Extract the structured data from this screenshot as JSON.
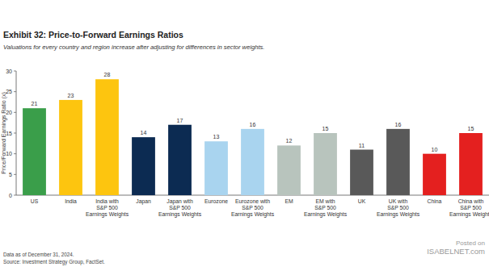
{
  "chart_data": {
    "type": "bar",
    "title": "Exhibit 32: Price-to-Forward Earnings Ratios",
    "subtitle": "Valuations for every country and region increase after adjusting for differences in sector weights.",
    "y_label": "Price/Forward Earnings Ratio (x)",
    "categories": [
      "US",
      "India",
      "India with S&P 500 Earnings Weights",
      "Japan",
      "Japan with S&P 500 Earnings Weights",
      "Eurozone",
      "Eurozone with S&P 500 Earnings Weights",
      "EM",
      "EM with S&P 500 Earnings Weights",
      "UK",
      "UK with S&P 500 Earnings Weights",
      "China",
      "China with S&P 500 Earnings Weights"
    ],
    "values": [
      21,
      23,
      28,
      14,
      17,
      13,
      16,
      12,
      15,
      11,
      16,
      10,
      15
    ],
    "colors": [
      "#3a9e4a",
      "#fdc50f",
      "#fdc50f",
      "#0c2b52",
      "#0c2b52",
      "#a9d4ef",
      "#a9d4ef",
      "#b8c4bd",
      "#b8c4bd",
      "#595959",
      "#595959",
      "#e4201f",
      "#e4201f"
    ],
    "ylim": [
      0,
      30
    ],
    "yticks": [
      0,
      5,
      10,
      15,
      20,
      25,
      30
    ],
    "grid": false,
    "data_labels": true,
    "footnotes": [
      "Data as of December 31, 2024.",
      "Source: Investment Strategy Group, FactSet."
    ],
    "watermark": [
      "Posted on",
      "ISABELNET.com"
    ]
  }
}
